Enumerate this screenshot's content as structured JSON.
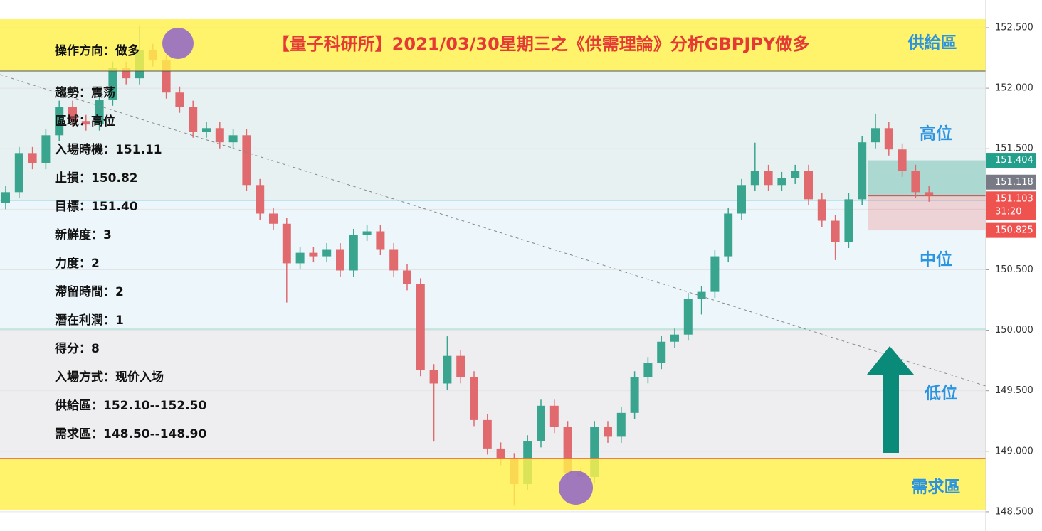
{
  "chart_data": {
    "type": "candlestick",
    "title": "【量子科研所】2021/03/30星期三之《供需理論》分析GBPJPY做多",
    "open": [
      151.05,
      151.141,
      151.464,
      151.38,
      151.611,
      151.847,
      151.729,
      151.7,
      151.905,
      152.17,
      152.082,
      152.317,
      152.229,
      151.964,
      151.847,
      151.641,
      151.67,
      151.553,
      151.611,
      151.2,
      150.964,
      150.88,
      150.553,
      150.64,
      150.611,
      150.67,
      150.494,
      150.788,
      150.817,
      150.67,
      150.494,
      150.38,
      149.67,
      149.56,
      149.788,
      149.611,
      149.258,
      149.023,
      148.935,
      148.729,
      149.082,
      149.376,
      149.2,
      148.817,
      148.788,
      149.2,
      149.12,
      149.317,
      149.611,
      149.729,
      149.905,
      149.964,
      150.258,
      150.317,
      150.611,
      150.964,
      151.2,
      151.317,
      151.2,
      151.258,
      151.317,
      151.082,
      150.905,
      150.729,
      151.082,
      151.553,
      151.67,
      151.494,
      151.317,
      151.141
    ],
    "high": [
      151.191,
      151.514,
      151.514,
      151.661,
      151.897,
      151.897,
      151.779,
      151.955,
      152.22,
      152.22,
      152.52,
      152.367,
      152.279,
      152.014,
      151.897,
      151.72,
      151.72,
      151.661,
      151.661,
      151.25,
      151.014,
      150.93,
      150.69,
      150.69,
      150.72,
      150.72,
      150.838,
      150.867,
      150.867,
      150.72,
      150.544,
      150.43,
      149.72,
      149.95,
      149.838,
      149.661,
      149.308,
      149.073,
      148.985,
      149.132,
      149.426,
      149.426,
      149.25,
      148.867,
      149.25,
      149.25,
      149.367,
      149.661,
      149.779,
      149.955,
      150.014,
      150.308,
      150.367,
      150.661,
      151.014,
      151.25,
      151.55,
      151.367,
      151.308,
      151.367,
      151.367,
      151.132,
      150.955,
      151.132,
      151.603,
      151.79,
      151.72,
      151.544,
      151.367,
      151.191
    ],
    "low": [
      151.0,
      151.091,
      151.33,
      151.33,
      151.561,
      151.679,
      151.65,
      151.65,
      151.855,
      152.032,
      152.032,
      152.179,
      151.914,
      151.797,
      151.591,
      151.591,
      151.503,
      151.503,
      151.15,
      150.914,
      150.83,
      150.229,
      150.503,
      150.561,
      150.561,
      150.444,
      150.444,
      150.738,
      150.62,
      150.444,
      150.33,
      149.62,
      149.08,
      149.51,
      149.561,
      149.208,
      148.973,
      148.885,
      148.55,
      148.679,
      149.032,
      149.15,
      148.767,
      148.738,
      148.738,
      149.07,
      149.07,
      149.267,
      149.561,
      149.679,
      149.855,
      149.914,
      150.13,
      150.267,
      150.561,
      150.914,
      151.15,
      151.15,
      151.15,
      151.208,
      151.032,
      150.855,
      150.58,
      150.679,
      151.032,
      151.503,
      151.444,
      151.267,
      151.091,
      151.062
    ],
    "close": [
      151.141,
      151.464,
      151.38,
      151.611,
      151.847,
      151.729,
      151.7,
      151.905,
      152.17,
      152.082,
      152.317,
      152.229,
      151.964,
      151.847,
      151.641,
      151.67,
      151.553,
      151.611,
      151.2,
      150.964,
      150.88,
      150.553,
      150.64,
      150.611,
      150.67,
      150.494,
      150.788,
      150.817,
      150.67,
      150.494,
      150.38,
      149.67,
      149.56,
      149.788,
      149.611,
      149.258,
      149.023,
      148.935,
      148.729,
      149.082,
      149.376,
      149.2,
      148.817,
      148.788,
      149.2,
      149.12,
      149.317,
      149.611,
      149.729,
      149.905,
      149.964,
      150.258,
      150.317,
      150.611,
      150.964,
      151.2,
      151.317,
      151.2,
      151.258,
      151.317,
      151.082,
      150.905,
      150.729,
      151.082,
      151.553,
      151.67,
      151.494,
      151.317,
      151.141,
      151.112
    ],
    "up_color": "#3aa58f",
    "down_color": "#e06a6e",
    "ylim": [
      148.341,
      152.729
    ],
    "yticks": [
      {
        "value": 148.5,
        "label": "148.500"
      },
      {
        "value": 149,
        "label": "149.000"
      },
      {
        "value": 149.5,
        "label": "149.500"
      },
      {
        "value": 150,
        "label": "150.000"
      },
      {
        "value": 150.5,
        "label": "150.500"
      },
      {
        "value": 151,
        "label": "151.000"
      },
      {
        "value": 151.5,
        "label": "151.500"
      },
      {
        "value": 152,
        "label": "152.000"
      },
      {
        "value": 152.5,
        "label": "152.500"
      }
    ],
    "grid": true,
    "price_tags": [
      {
        "value": 151.404,
        "label": "151.404",
        "color": "#22a08c"
      },
      {
        "value": 151.118,
        "label": "151.118",
        "color": "#787b86"
      },
      {
        "value": 151.103,
        "label": "151.103",
        "sub": "31:20",
        "color": "#ef5350"
      },
      {
        "value": 150.825,
        "label": "150.825",
        "color": "#ef5350"
      }
    ],
    "position": {
      "entry": 151.11
    },
    "zone_labels": [
      "供給區",
      "高位",
      "中位",
      "低位",
      "需求區"
    ],
    "notes": [
      "操作方向：做多",
      "趨勢：震荡",
      "區域：高位",
      "入場時機：151.11",
      "止損：150.82",
      "目標：151.40",
      "新鮮度：3",
      "力度：2",
      "滯留時間：2",
      "潛在利潤：1",
      "得分：8",
      "入場方式：现价入场",
      "供給區：152.10--152.50",
      "需求區：148.50--148.90"
    ]
  }
}
